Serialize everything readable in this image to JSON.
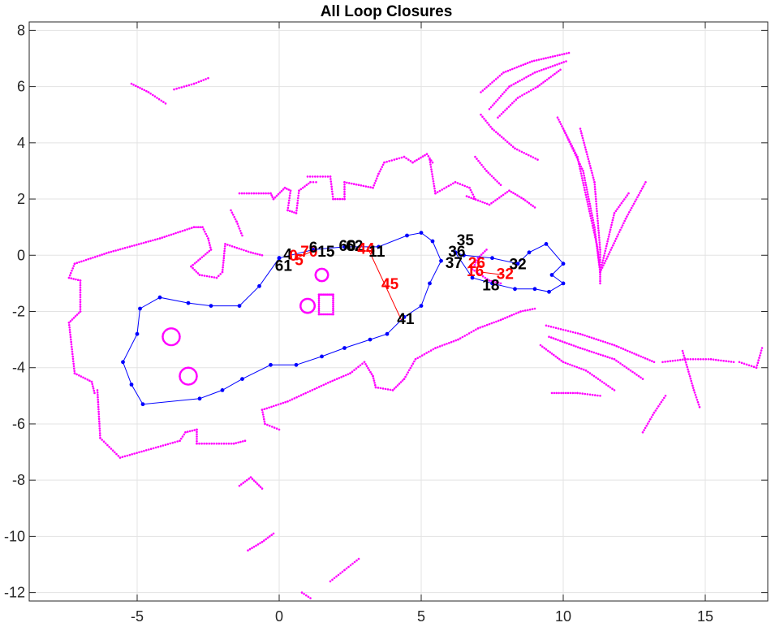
{
  "chart_data": {
    "type": "scatter",
    "title": "All Loop Closures",
    "xlabel": "",
    "ylabel": "",
    "xlim": [
      -8.8,
      17.2
    ],
    "ylim": [
      -12.3,
      8.3
    ],
    "xticks": [
      -5,
      0,
      5,
      10,
      15
    ],
    "yticks": [
      8,
      6,
      4,
      2,
      0,
      -2,
      -4,
      -6,
      -8,
      -10,
      -12
    ],
    "grid": true,
    "colors": {
      "scan": "#ff00ff",
      "trajectory": "#0000ff",
      "loop_closure": "#ff0000",
      "label_black": "#000000",
      "label_red": "#ff0000",
      "grid": "#e3e3e3",
      "axes": "#262626"
    },
    "trajectory": {
      "name": "",
      "points": [
        [
          0,
          -0.1
        ],
        [
          1.2,
          0.2
        ],
        [
          2.3,
          0.3
        ],
        [
          3.5,
          0.3
        ],
        [
          4.5,
          0.7
        ],
        [
          5.0,
          0.8
        ],
        [
          5.4,
          0.5
        ],
        [
          5.7,
          -0.2
        ],
        [
          5.3,
          -1.0
        ],
        [
          5.0,
          -1.8
        ],
        [
          4.4,
          -2.2
        ],
        [
          3.8,
          -2.8
        ],
        [
          3.2,
          -3.0
        ],
        [
          2.3,
          -3.3
        ],
        [
          1.5,
          -3.6
        ],
        [
          0.6,
          -3.9
        ],
        [
          -0.3,
          -3.9
        ],
        [
          -1.3,
          -4.4
        ],
        [
          -2.0,
          -4.8
        ],
        [
          -2.8,
          -5.1
        ],
        [
          -4.8,
          -5.3
        ],
        [
          -5.2,
          -4.6
        ],
        [
          -5.5,
          -3.8
        ],
        [
          -5.0,
          -2.8
        ],
        [
          -4.9,
          -1.9
        ],
        [
          -4.2,
          -1.5
        ],
        [
          -3.2,
          -1.7
        ],
        [
          -2.4,
          -1.8
        ],
        [
          -1.4,
          -1.8
        ],
        [
          -0.7,
          -1.1
        ],
        [
          0,
          -0.1
        ]
      ],
      "east_loop": [
        [
          6.2,
          0.1
        ],
        [
          6.8,
          -0.8
        ],
        [
          7.5,
          -1.0
        ],
        [
          8.3,
          -1.2
        ],
        [
          9.0,
          -1.2
        ],
        [
          9.5,
          -1.3
        ],
        [
          10.0,
          -1.0
        ],
        [
          9.6,
          -0.7
        ],
        [
          10.0,
          -0.3
        ],
        [
          9.4,
          0.4
        ],
        [
          8.8,
          0.1
        ],
        [
          8.4,
          -0.3
        ],
        [
          7.5,
          -0.1
        ],
        [
          6.5,
          0.0
        ],
        [
          6.2,
          0.1
        ]
      ]
    },
    "loop_closures": [
      [
        [
          3.1,
          0.3
        ],
        [
          4.3,
          -2.3
        ]
      ],
      [
        [
          0.6,
          -0.1
        ],
        [
          1.3,
          0.2
        ]
      ],
      [
        [
          7.1,
          -0.6
        ],
        [
          7.9,
          -0.7
        ]
      ]
    ],
    "node_labels": [
      {
        "text": "61",
        "x": -0.15,
        "y": -0.55,
        "color": "black"
      },
      {
        "text": "4",
        "x": 0.15,
        "y": -0.15,
        "color": "black"
      },
      {
        "text": "0",
        "x": 0.35,
        "y": -0.2,
        "color": "red"
      },
      {
        "text": "5",
        "x": 0.55,
        "y": -0.35,
        "color": "red"
      },
      {
        "text": "70",
        "x": 0.75,
        "y": -0.05,
        "color": "red"
      },
      {
        "text": "6",
        "x": 1.05,
        "y": 0.1,
        "color": "black"
      },
      {
        "text": "15",
        "x": 1.35,
        "y": -0.05,
        "color": "black"
      },
      {
        "text": "60",
        "x": 2.1,
        "y": 0.15,
        "color": "black"
      },
      {
        "text": "62",
        "x": 2.35,
        "y": 0.15,
        "color": "black"
      },
      {
        "text": "44",
        "x": 2.75,
        "y": 0.05,
        "color": "red"
      },
      {
        "text": "11",
        "x": 3.15,
        "y": -0.05,
        "color": "black"
      },
      {
        "text": "45",
        "x": 3.6,
        "y": -1.2,
        "color": "red"
      },
      {
        "text": "41",
        "x": 4.15,
        "y": -2.45,
        "color": "black"
      },
      {
        "text": "35",
        "x": 6.25,
        "y": 0.35,
        "color": "black"
      },
      {
        "text": "36",
        "x": 5.95,
        "y": -0.05,
        "color": "black"
      },
      {
        "text": "37",
        "x": 5.85,
        "y": -0.45,
        "color": "black"
      },
      {
        "text": "26",
        "x": 6.65,
        "y": -0.45,
        "color": "red"
      },
      {
        "text": "16",
        "x": 6.6,
        "y": -0.75,
        "color": "red"
      },
      {
        "text": "32",
        "x": 7.65,
        "y": -0.85,
        "color": "red"
      },
      {
        "text": "32",
        "x": 8.1,
        "y": -0.5,
        "color": "black"
      },
      {
        "text": "18",
        "x": 7.15,
        "y": -1.25,
        "color": "black"
      }
    ],
    "scan_segments": [
      [
        [
          -7.2,
          -0.3
        ],
        [
          -6.0,
          0.1
        ],
        [
          -4.2,
          0.6
        ],
        [
          -3.0,
          1.0
        ],
        [
          -2.7,
          1.0
        ]
      ],
      [
        [
          -7.2,
          -0.3
        ],
        [
          -7.4,
          -0.8
        ],
        [
          -7.0,
          -0.9
        ],
        [
          -7.0,
          -2.0
        ],
        [
          -7.4,
          -2.4
        ],
        [
          -7.2,
          -4.2
        ]
      ],
      [
        [
          -7.2,
          -4.2
        ],
        [
          -6.6,
          -4.5
        ],
        [
          -6.5,
          -4.9
        ]
      ],
      [
        [
          -6.4,
          -4.8
        ],
        [
          -6.3,
          -6.5
        ],
        [
          -5.6,
          -7.2
        ],
        [
          -3.5,
          -6.6
        ],
        [
          -3.3,
          -6.3
        ]
      ],
      [
        [
          -3.3,
          -6.3
        ],
        [
          -2.9,
          -6.2
        ],
        [
          -2.9,
          -6.7
        ],
        [
          -1.6,
          -6.7
        ],
        [
          -1.2,
          -6.6
        ]
      ],
      [
        [
          -2.7,
          1.0
        ],
        [
          -2.5,
          0.6
        ],
        [
          -2.4,
          0.2
        ],
        [
          -3.1,
          -0.4
        ]
      ],
      [
        [
          -3.1,
          -0.4
        ],
        [
          -2.8,
          -0.7
        ],
        [
          -2.2,
          -0.8
        ],
        [
          -2.0,
          -0.6
        ],
        [
          -1.9,
          0.4
        ]
      ],
      [
        [
          -1.9,
          0.4
        ],
        [
          -1.0,
          0.1
        ],
        [
          -0.6,
          0.0
        ]
      ],
      [
        [
          -1.7,
          1.6
        ],
        [
          -1.5,
          1.2
        ],
        [
          -1.3,
          0.7
        ]
      ],
      [
        [
          -1.4,
          2.2
        ],
        [
          -0.3,
          2.2
        ],
        [
          -0.2,
          2.0
        ],
        [
          0.2,
          2.4
        ],
        [
          0.4,
          2.3
        ]
      ],
      [
        [
          0.4,
          2.3
        ],
        [
          0.3,
          1.6
        ],
        [
          0.6,
          1.5
        ],
        [
          0.7,
          2.3
        ],
        [
          1.1,
          2.6
        ],
        [
          1.3,
          2.6
        ]
      ],
      [
        [
          1.0,
          2.8
        ],
        [
          1.8,
          2.8
        ],
        [
          1.9,
          2.0
        ],
        [
          2.3,
          2.0
        ]
      ],
      [
        [
          2.3,
          2.0
        ],
        [
          2.3,
          2.6
        ],
        [
          3.3,
          2.4
        ],
        [
          3.5,
          2.9
        ],
        [
          3.7,
          3.3
        ],
        [
          4.4,
          3.5
        ]
      ],
      [
        [
          4.4,
          3.5
        ],
        [
          4.7,
          3.3
        ],
        [
          5.2,
          3.6
        ],
        [
          5.4,
          3.3
        ]
      ],
      [
        [
          5.3,
          3.4
        ],
        [
          5.5,
          2.2
        ],
        [
          6.2,
          2.6
        ],
        [
          6.7,
          2.4
        ],
        [
          6.9,
          2.0
        ]
      ],
      [
        [
          6.6,
          2.1
        ],
        [
          7.4,
          1.8
        ],
        [
          8.1,
          2.3
        ],
        [
          8.6,
          2.0
        ],
        [
          9.0,
          1.7
        ]
      ],
      [
        [
          -0.6,
          -5.5
        ],
        [
          0.3,
          -5.2
        ],
        [
          1.8,
          -4.5
        ],
        [
          2.5,
          -4.2
        ],
        [
          3.0,
          -3.8
        ]
      ],
      [
        [
          -0.6,
          -5.5
        ],
        [
          -0.5,
          -6.0
        ],
        [
          0.0,
          -6.2
        ]
      ],
      [
        [
          3.0,
          -3.8
        ],
        [
          3.3,
          -4.3
        ],
        [
          3.4,
          -4.7
        ],
        [
          4.0,
          -4.8
        ],
        [
          4.4,
          -4.4
        ]
      ],
      [
        [
          4.4,
          -4.4
        ],
        [
          4.8,
          -3.7
        ],
        [
          5.5,
          -3.3
        ],
        [
          6.3,
          -3.0
        ],
        [
          7.0,
          -2.6
        ]
      ],
      [
        [
          7.0,
          -2.6
        ],
        [
          7.8,
          -2.3
        ],
        [
          8.5,
          -2.0
        ],
        [
          9.0,
          -1.9
        ]
      ],
      [
        [
          6.8,
          -0.5
        ],
        [
          7.0,
          -0.1
        ],
        [
          7.3,
          0.2
        ]
      ],
      [
        [
          6.8,
          -0.5
        ],
        [
          7.4,
          -0.9
        ],
        [
          7.8,
          -1.0
        ]
      ],
      [
        [
          6.9,
          3.5
        ],
        [
          7.3,
          3.0
        ],
        [
          7.8,
          2.5
        ]
      ],
      [
        [
          7.1,
          5.0
        ],
        [
          7.5,
          4.5
        ],
        [
          8.3,
          3.8
        ],
        [
          9.1,
          3.4
        ]
      ],
      [
        [
          7.1,
          5.8
        ],
        [
          7.9,
          6.5
        ],
        [
          8.9,
          6.9
        ],
        [
          10.2,
          7.2
        ]
      ],
      [
        [
          7.4,
          5.2
        ],
        [
          8.1,
          6.0
        ],
        [
          9.0,
          6.5
        ],
        [
          10.1,
          6.9
        ]
      ],
      [
        [
          7.7,
          4.9
        ],
        [
          8.4,
          5.6
        ],
        [
          9.1,
          6.0
        ],
        [
          9.9,
          6.6
        ]
      ],
      [
        [
          9.8,
          4.9
        ],
        [
          10.5,
          3.5
        ],
        [
          11.2,
          0.3
        ],
        [
          11.3,
          -0.6
        ],
        [
          11.3,
          -1.0
        ]
      ],
      [
        [
          10.0,
          4.5
        ],
        [
          10.7,
          3.0
        ],
        [
          11.1,
          1.0
        ],
        [
          11.3,
          -0.6
        ]
      ],
      [
        [
          10.6,
          4.5
        ],
        [
          11.1,
          2.6
        ],
        [
          11.3,
          0.2
        ],
        [
          11.3,
          -0.6
        ]
      ],
      [
        [
          11.3,
          -0.6
        ],
        [
          12.2,
          1.3
        ],
        [
          12.9,
          2.6
        ]
      ],
      [
        [
          11.3,
          -0.6
        ],
        [
          11.8,
          1.5
        ],
        [
          12.3,
          2.2
        ]
      ],
      [
        [
          9.4,
          -2.5
        ],
        [
          10.6,
          -2.8
        ],
        [
          11.8,
          -3.2
        ],
        [
          13.2,
          -3.8
        ]
      ],
      [
        [
          9.5,
          -2.9
        ],
        [
          10.6,
          -3.3
        ],
        [
          11.8,
          -3.7
        ],
        [
          12.8,
          -4.4
        ]
      ],
      [
        [
          9.2,
          -3.2
        ],
        [
          10.0,
          -3.8
        ],
        [
          10.8,
          -4.1
        ],
        [
          11.8,
          -4.8
        ]
      ],
      [
        [
          9.6,
          -4.9
        ],
        [
          10.5,
          -4.9
        ],
        [
          11.3,
          -5.0
        ]
      ],
      [
        [
          13.5,
          -3.8
        ],
        [
          14.3,
          -3.7
        ],
        [
          15.2,
          -3.7
        ],
        [
          16.0,
          -3.8
        ]
      ],
      [
        [
          14.2,
          -3.4
        ],
        [
          14.6,
          -4.8
        ],
        [
          14.8,
          -5.4
        ]
      ],
      [
        [
          13.6,
          -5.0
        ],
        [
          13.2,
          -5.6
        ],
        [
          12.8,
          -6.3
        ]
      ],
      [
        [
          16.2,
          -3.8
        ],
        [
          16.8,
          -4.0
        ],
        [
          17.0,
          -3.3
        ]
      ],
      [
        [
          -5.2,
          6.1
        ],
        [
          -4.6,
          5.8
        ],
        [
          -4.0,
          5.4
        ]
      ],
      [
        [
          -3.7,
          5.9
        ],
        [
          -3.0,
          6.1
        ],
        [
          -2.5,
          6.3
        ]
      ],
      [
        [
          -1.4,
          -8.2
        ],
        [
          -1.0,
          -7.9
        ],
        [
          -0.6,
          -8.3
        ]
      ],
      [
        [
          -1.1,
          -10.5
        ],
        [
          -0.6,
          -10.2
        ],
        [
          -0.2,
          -9.9
        ]
      ],
      [
        [
          1.8,
          -11.6
        ],
        [
          2.3,
          -11.2
        ],
        [
          2.8,
          -10.8
        ]
      ],
      [
        [
          0.8,
          -12.0
        ],
        [
          1.1,
          -12.2
        ]
      ]
    ],
    "scan_circles": [
      {
        "cx": -3.8,
        "cy": -2.9,
        "r": 0.3
      },
      {
        "cx": -3.2,
        "cy": -4.3,
        "r": 0.3
      },
      {
        "cx": 1.0,
        "cy": -1.8,
        "r": 0.25
      },
      {
        "cx": 1.5,
        "cy": -0.7,
        "r": 0.22
      }
    ],
    "scan_rects": [
      {
        "x0": 1.4,
        "y0": -2.1,
        "x1": 1.9,
        "y1": -1.4
      }
    ]
  }
}
